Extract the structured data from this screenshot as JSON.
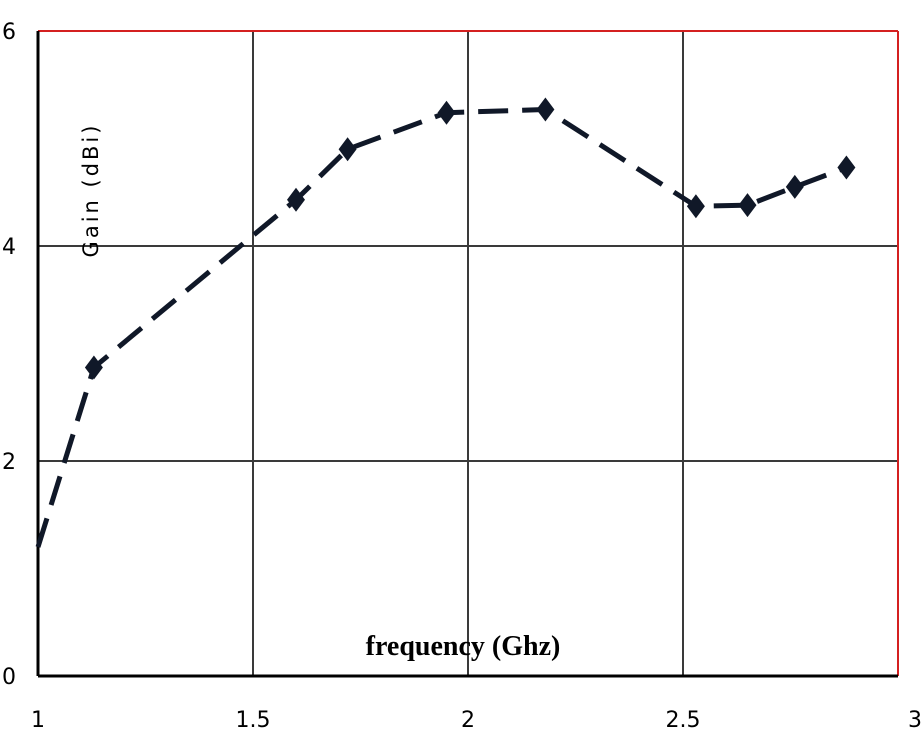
{
  "chart_data": {
    "type": "line",
    "xlabel": "frequency (Ghz)",
    "ylabel": "Gain (dBi)",
    "xlim": [
      1,
      3
    ],
    "ylim": [
      0,
      6
    ],
    "x_ticks": [
      "1",
      "1.5",
      "2",
      "2.5",
      "3"
    ],
    "y_ticks": [
      "0",
      "2",
      "4",
      "6"
    ],
    "grid": true,
    "line_style": "dashed",
    "marker": "diamond",
    "colors": {
      "line": "#101828",
      "grid": "#3a3a3a",
      "frame_top_right": "#d42020",
      "axis": "#000000"
    },
    "series": [
      {
        "x": [
          1.0,
          1.13,
          1.6,
          1.72,
          1.95,
          2.18,
          2.53,
          2.65,
          2.76,
          2.88
        ],
        "y": [
          1.2,
          2.87,
          4.43,
          4.9,
          5.24,
          5.27,
          4.37,
          4.38,
          4.55,
          4.73
        ],
        "markers": [
          false,
          true,
          true,
          true,
          true,
          true,
          true,
          true,
          true,
          true
        ]
      }
    ]
  }
}
